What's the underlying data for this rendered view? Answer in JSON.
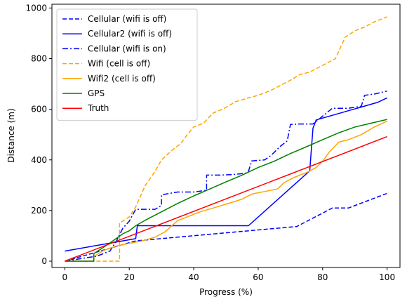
{
  "chart_data": {
    "type": "line",
    "xlabel": "Progress (%)",
    "ylabel": "Distance (m)",
    "xlim": [
      -4,
      104
    ],
    "ylim": [
      -25,
      1015
    ],
    "xticks": [
      0,
      20,
      40,
      60,
      80,
      100
    ],
    "yticks": [
      0,
      200,
      400,
      600,
      800,
      1000
    ],
    "grid": false,
    "legend": "top-left",
    "series": [
      {
        "name": "Cellular (wifi is off)",
        "color": "#0000ff",
        "dash": "dashed",
        "x": [
          0,
          22,
          22,
          72,
          72,
          83,
          88,
          100
        ],
        "y": [
          0,
          80,
          80,
          137,
          137,
          210,
          210,
          268
        ],
        "step": false
      },
      {
        "name": "Cellular2 (wifi is off)",
        "color": "#0000ff",
        "dash": "solid",
        "x": [
          0,
          22,
          22.5,
          57,
          76,
          77,
          78,
          97,
          100
        ],
        "y": [
          40,
          89,
          140,
          140,
          357,
          525,
          558,
          627,
          645
        ],
        "step": false
      },
      {
        "name": "Cellular (wifi is on)",
        "color": "#0000ff",
        "dash": "dashdot",
        "x": [
          0,
          5,
          10,
          14,
          16,
          18,
          20,
          22,
          24,
          26,
          28,
          30,
          30,
          35,
          40,
          44,
          44,
          48,
          52,
          56,
          57,
          58,
          62,
          64,
          67,
          69,
          70,
          73,
          77,
          83,
          88,
          92,
          93,
          96,
          100
        ],
        "y": [
          0,
          10,
          20,
          40,
          80,
          130,
          158,
          205,
          205,
          205,
          205,
          220,
          262,
          273,
          273,
          280,
          340,
          340,
          342,
          347,
          355,
          396,
          400,
          418,
          455,
          475,
          540,
          542,
          542,
          604,
          604,
          612,
          655,
          660,
          672
        ],
        "step": false
      },
      {
        "name": "Wifi (cell is off)",
        "color": "#ffa500",
        "dash": "dashed",
        "x": [
          0,
          17,
          17,
          20,
          22,
          25,
          28,
          30,
          33,
          36,
          38,
          40,
          43,
          46,
          49,
          53,
          57,
          60,
          64,
          67,
          70,
          73,
          76,
          78,
          81,
          84,
          87,
          90,
          93,
          96,
          100
        ],
        "y": [
          0,
          0,
          150,
          175,
          215,
          300,
          355,
          400,
          435,
          465,
          500,
          530,
          545,
          585,
          600,
          630,
          645,
          655,
          675,
          695,
          715,
          737,
          747,
          760,
          780,
          800,
          885,
          910,
          925,
          945,
          965
        ],
        "step": false
      },
      {
        "name": "Wifi2 (cell is off)",
        "color": "#ffa500",
        "dash": "solid",
        "x": [
          0,
          9,
          9,
          12,
          16,
          20,
          24,
          28,
          31,
          35,
          38,
          42,
          46,
          50,
          55,
          58,
          62,
          66,
          68,
          71,
          75,
          78,
          80,
          82,
          85,
          88,
          92,
          96,
          100
        ],
        "y": [
          0,
          0,
          18,
          42,
          60,
          70,
          80,
          95,
          115,
          160,
          175,
          195,
          210,
          225,
          245,
          265,
          275,
          285,
          310,
          330,
          350,
          370,
          395,
          430,
          470,
          480,
          500,
          530,
          553
        ],
        "step": false
      },
      {
        "name": "GPS",
        "color": "#008000",
        "dash": "solid",
        "x": [
          0,
          9,
          9,
          12,
          14,
          16,
          18,
          20,
          22,
          25,
          30,
          35,
          40,
          45,
          50,
          55,
          60,
          65,
          70,
          75,
          80,
          85,
          90,
          95,
          100
        ],
        "y": [
          0,
          0,
          30,
          55,
          72,
          90,
          108,
          120,
          140,
          162,
          195,
          228,
          258,
          285,
          313,
          340,
          370,
          395,
          425,
          452,
          480,
          507,
          530,
          545,
          560
        ],
        "step": false
      },
      {
        "name": "Truth",
        "color": "#ff0000",
        "dash": "solid",
        "x": [
          0,
          100
        ],
        "y": [
          0,
          492
        ],
        "step": false
      }
    ]
  }
}
